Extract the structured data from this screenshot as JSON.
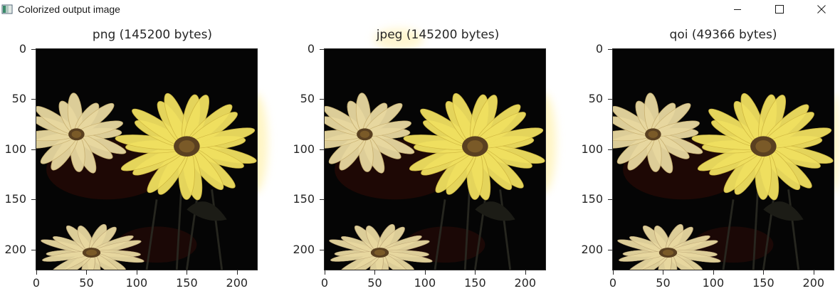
{
  "window": {
    "title": "Colorized output image",
    "controls": {
      "minimize_icon": "minimize-icon",
      "maximize_icon": "maximize-icon",
      "close_icon": "close-icon"
    }
  },
  "figure": {
    "panels": [
      {
        "title": "png (145200 bytes)",
        "format": "png",
        "bytes": 145200
      },
      {
        "title": "jpeg (145200 bytes)",
        "format": "jpeg",
        "bytes": 145200
      },
      {
        "title": "qoi (49366 bytes)",
        "format": "qoi",
        "bytes": 49366
      }
    ],
    "x_ticks": [
      "0",
      "50",
      "100",
      "150",
      "200"
    ],
    "y_ticks": [
      "0",
      "50",
      "100",
      "150",
      "200"
    ],
    "image_extent": [
      220,
      220
    ],
    "image_subject": "yellow and pale daisy flowers on a black background",
    "colors": {
      "background": "#050505",
      "petal_yellow": "#f0e060",
      "petal_pale": "#e8d8a0",
      "center_brown": "#5a4020",
      "glow": "#fff4b0"
    }
  }
}
